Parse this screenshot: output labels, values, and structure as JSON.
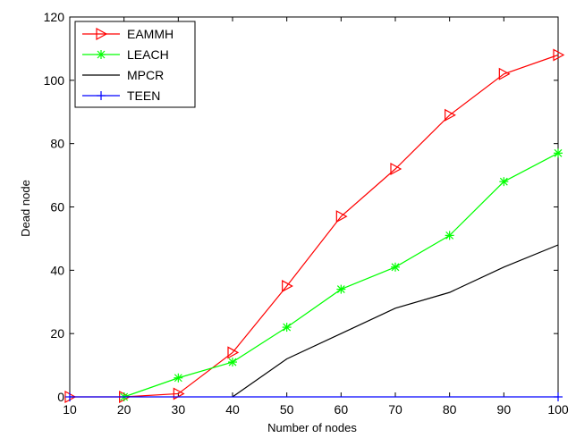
{
  "chart_data": {
    "type": "line",
    "title": "",
    "xlabel": "Number of nodes",
    "ylabel": "Dead node",
    "xlim": [
      10,
      100
    ],
    "ylim": [
      0,
      120
    ],
    "xticks": [
      10,
      20,
      30,
      40,
      50,
      60,
      70,
      80,
      90,
      100
    ],
    "yticks": [
      0,
      20,
      40,
      60,
      80,
      100,
      120
    ],
    "grid": false,
    "legend_position": "top-left",
    "series": [
      {
        "name": "EAMMH",
        "color": "#ff0000",
        "marker": "triangle-right",
        "x": [
          10,
          20,
          30,
          40,
          50,
          60,
          70,
          80,
          90,
          100
        ],
        "y": [
          0,
          0,
          1,
          14,
          35,
          57,
          72,
          89,
          102,
          108
        ]
      },
      {
        "name": "LEACH",
        "color": "#00ff00",
        "marker": "asterisk",
        "x": [
          20,
          30,
          40,
          50,
          60,
          70,
          80,
          90,
          100
        ],
        "y": [
          0,
          6,
          11,
          22,
          34,
          41,
          51,
          68,
          77
        ]
      },
      {
        "name": "MPCR",
        "color": "#000000",
        "marker": "none",
        "x": [
          40,
          50,
          60,
          70,
          80,
          90,
          100
        ],
        "y": [
          0,
          12,
          20,
          28,
          33,
          41,
          48
        ]
      },
      {
        "name": "TEEN",
        "color": "#0000ff",
        "marker": "plus",
        "x": [
          10,
          100
        ],
        "y": [
          0,
          0
        ]
      }
    ]
  }
}
